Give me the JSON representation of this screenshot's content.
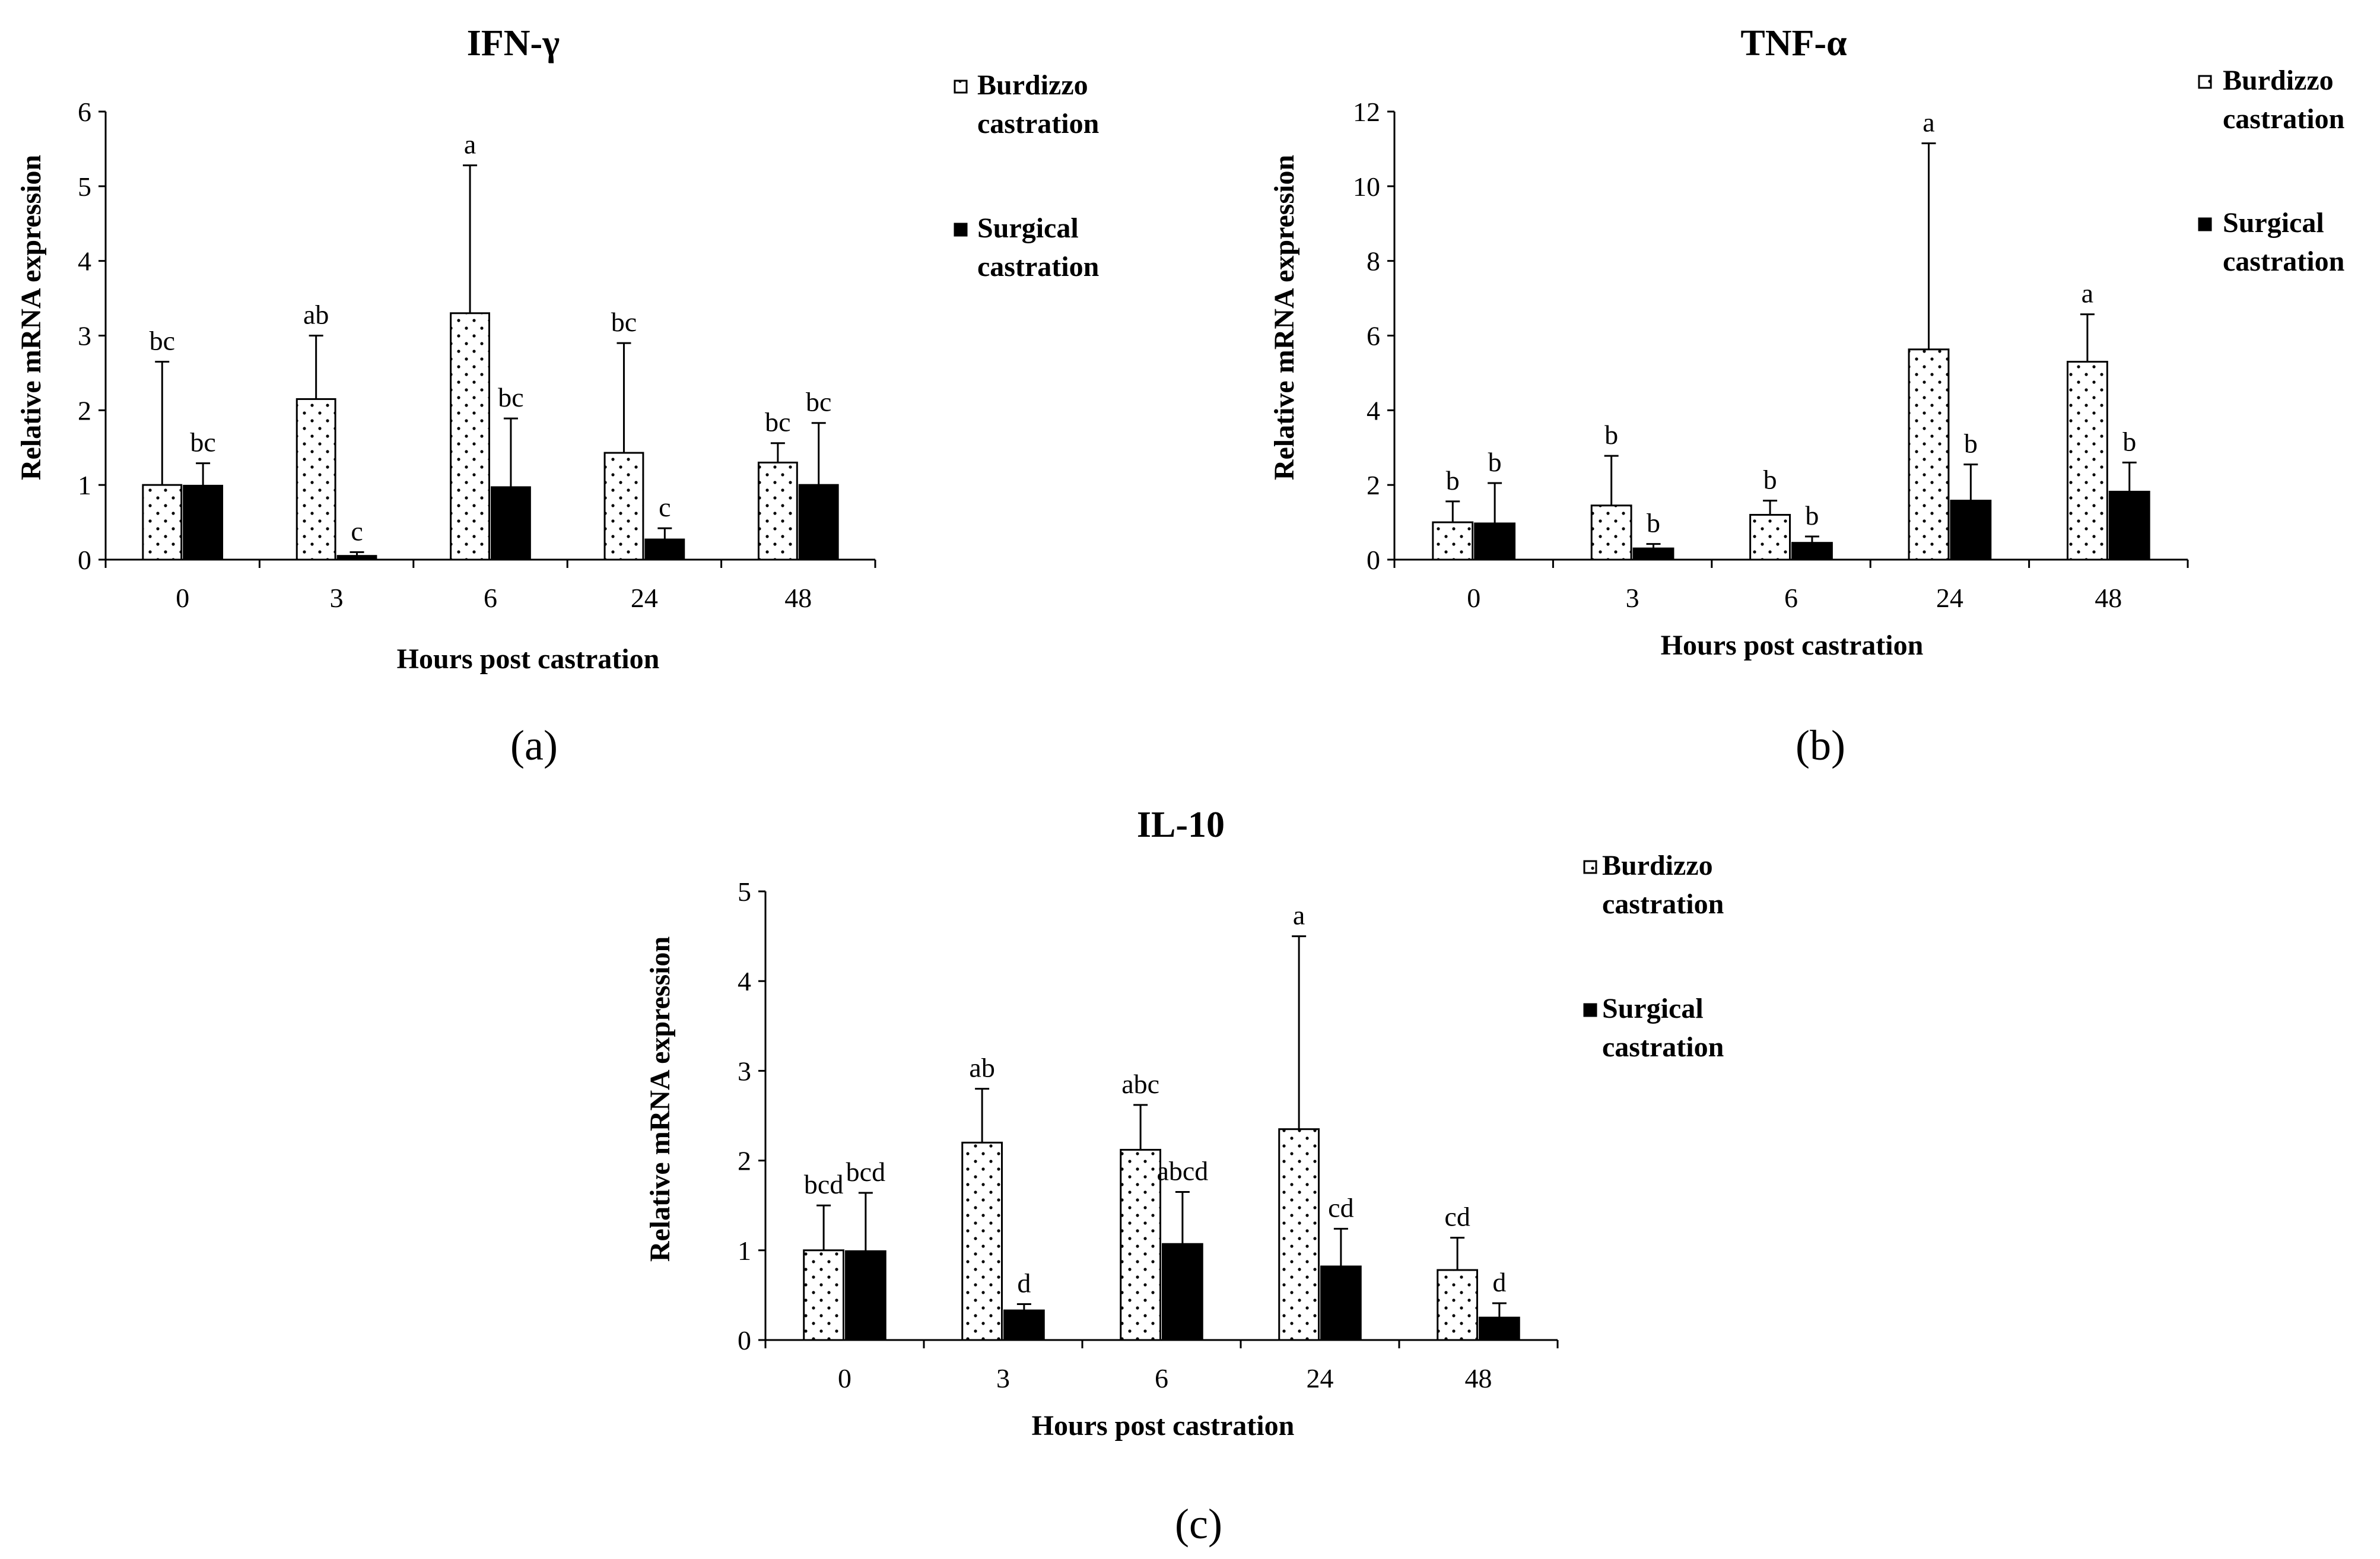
{
  "chart_data": [
    {
      "type": "bar",
      "title": "IFN-γ",
      "panel_label": "(a)",
      "xlabel": "Hours post castration",
      "ylabel": "Relative mRNA expression",
      "categories": [
        "0",
        "3",
        "6",
        "24",
        "48"
      ],
      "ylim": [
        0,
        6
      ],
      "yticks": [
        "0",
        "1",
        "2",
        "3",
        "4",
        "5",
        "6"
      ],
      "grid": false,
      "legend_position": "top-right",
      "series": [
        {
          "name": "Burdizzo castration",
          "legend_lines": [
            "Burdizzo",
            "castration"
          ],
          "pattern": "dotted",
          "values": [
            1.0,
            2.15,
            3.3,
            1.43,
            1.3
          ],
          "errors": [
            1.65,
            0.85,
            1.98,
            1.47,
            0.26
          ],
          "labels": [
            "bc",
            "ab",
            "a",
            "bc",
            "bc"
          ]
        },
        {
          "name": "Surgical castration",
          "legend_lines": [
            "Surgical",
            "castration"
          ],
          "pattern": "solid",
          "values": [
            0.99,
            0.05,
            0.97,
            0.27,
            1.0
          ],
          "errors": [
            0.3,
            0.05,
            0.92,
            0.15,
            0.83
          ],
          "labels": [
            "bc",
            "c",
            "bc",
            "c",
            "bc"
          ]
        }
      ]
    },
    {
      "type": "bar",
      "title": "TNF-α",
      "panel_label": "(b)",
      "xlabel": "Hours post castration",
      "ylabel": "Relative mRNA expression",
      "categories": [
        "0",
        "3",
        "6",
        "24",
        "48"
      ],
      "ylim": [
        0,
        12
      ],
      "yticks": [
        "0",
        "2",
        "4",
        "6",
        "8",
        "10",
        "12"
      ],
      "grid": false,
      "legend_position": "top-right",
      "series": [
        {
          "name": "Burdizzo castration",
          "legend_lines": [
            "Burdizzo",
            "castration"
          ],
          "pattern": "dotted",
          "values": [
            1.0,
            1.45,
            1.2,
            5.63,
            5.3
          ],
          "errors": [
            0.56,
            1.33,
            0.38,
            5.52,
            1.27
          ],
          "labels": [
            "b",
            "b",
            "b",
            "a",
            "a"
          ]
        },
        {
          "name": "Surgical castration",
          "legend_lines": [
            "Surgical",
            "castration"
          ],
          "pattern": "solid",
          "values": [
            0.97,
            0.3,
            0.45,
            1.58,
            1.82
          ],
          "errors": [
            1.08,
            0.12,
            0.17,
            0.97,
            0.78
          ],
          "labels": [
            "b",
            "b",
            "b",
            "b",
            "b"
          ]
        }
      ]
    },
    {
      "type": "bar",
      "title": "IL-10",
      "panel_label": "(c)",
      "xlabel": "Hours post castration",
      "ylabel": "Relative mRNA expression",
      "categories": [
        "0",
        "3",
        "6",
        "24",
        "48"
      ],
      "ylim": [
        0,
        5
      ],
      "yticks": [
        "0",
        "1",
        "2",
        "3",
        "4",
        "5"
      ],
      "grid": false,
      "legend_position": "top-right",
      "series": [
        {
          "name": "Burdizzo castration",
          "legend_lines": [
            "Burdizzo",
            "castration"
          ],
          "pattern": "dotted",
          "values": [
            1.0,
            2.2,
            2.12,
            2.35,
            0.78
          ],
          "errors": [
            0.5,
            0.6,
            0.5,
            2.15,
            0.36
          ],
          "labels": [
            "bcd",
            "ab",
            "abc",
            "a",
            "cd"
          ]
        },
        {
          "name": "Surgical castration",
          "legend_lines": [
            "Surgical",
            "castration"
          ],
          "pattern": "solid",
          "values": [
            0.99,
            0.33,
            1.07,
            0.82,
            0.25
          ],
          "errors": [
            0.65,
            0.07,
            0.58,
            0.42,
            0.16
          ],
          "labels": [
            "bcd",
            "d",
            "abcd",
            "cd",
            "d"
          ]
        }
      ]
    }
  ]
}
